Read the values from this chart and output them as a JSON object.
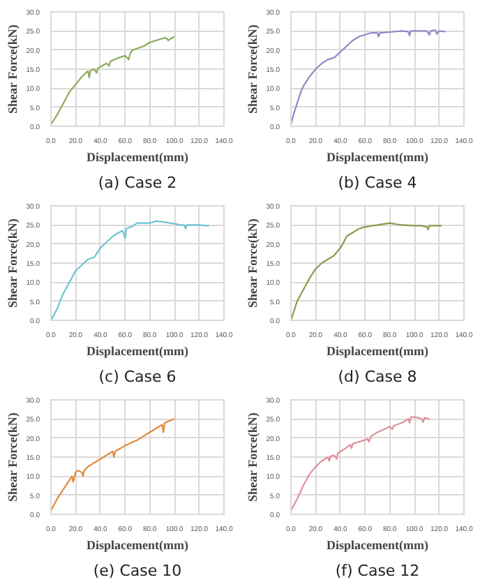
{
  "chart_data": [
    {
      "type": "line",
      "title": "(a) Case 2",
      "xlabel": "Displacement(mm)",
      "ylabel": "Shear Force(kN)",
      "xlim": [
        0,
        140
      ],
      "ylim": [
        0,
        30
      ],
      "grid": true,
      "marker": "none",
      "line_style": "solid",
      "xticks": [
        {
          "value": 0,
          "label": "0.0"
        },
        {
          "value": 20,
          "label": "20.0"
        },
        {
          "value": 40,
          "label": "40.0"
        },
        {
          "value": 60,
          "label": "60.0"
        },
        {
          "value": 80,
          "label": "80.0"
        },
        {
          "value": 100,
          "label": "100.0"
        },
        {
          "value": 120,
          "label": "120.0"
        },
        {
          "value": 140,
          "label": "140.0"
        }
      ],
      "yticks": [
        {
          "value": 0,
          "label": "0.0"
        },
        {
          "value": 5,
          "label": "5.0"
        },
        {
          "value": 10,
          "label": "10.0"
        },
        {
          "value": 15,
          "label": "15.0"
        },
        {
          "value": 20,
          "label": "20.0"
        },
        {
          "value": 25,
          "label": "25.0"
        },
        {
          "value": 30,
          "label": "30.0"
        }
      ],
      "x": [
        0,
        5,
        10,
        15,
        20,
        25,
        30,
        31,
        32,
        35,
        37,
        38,
        45,
        47,
        48,
        55,
        60,
        63,
        64,
        66,
        75,
        80,
        90,
        93,
        95,
        97,
        100
      ],
      "series": [
        {
          "color": "#8aab5a",
          "values": [
            0.5,
            3,
            6,
            9,
            11,
            13,
            14.5,
            12.8,
            14.6,
            15,
            14,
            15.2,
            16.5,
            15.8,
            17,
            18,
            18.5,
            17.5,
            19,
            20,
            21,
            22,
            23,
            23.2,
            22.5,
            23,
            23.5
          ]
        }
      ]
    },
    {
      "type": "line",
      "title": "(b) Case 4",
      "xlabel": "Displacement(mm)",
      "ylabel": "Shear Force(kN)",
      "xlim": [
        0,
        140
      ],
      "ylim": [
        0,
        30
      ],
      "grid": true,
      "marker": "none",
      "line_style": "solid",
      "xticks": [
        {
          "value": 0,
          "label": "0.0"
        },
        {
          "value": 20,
          "label": "20.0"
        },
        {
          "value": 40,
          "label": "40.0"
        },
        {
          "value": 60,
          "label": "60.0"
        },
        {
          "value": 80,
          "label": "80.0"
        },
        {
          "value": 100,
          "label": "100.0"
        },
        {
          "value": 120,
          "label": "120.0"
        },
        {
          "value": 140,
          "label": "140.0"
        }
      ],
      "yticks": [
        {
          "value": 0,
          "label": "0.0"
        },
        {
          "value": 5,
          "label": "5.0"
        },
        {
          "value": 10,
          "label": "10.0"
        },
        {
          "value": 15,
          "label": "15.0"
        },
        {
          "value": 20,
          "label": "20.0"
        },
        {
          "value": 25,
          "label": "25.0"
        },
        {
          "value": 30,
          "label": "30.0"
        }
      ],
      "x": [
        0,
        2,
        5,
        8,
        10,
        15,
        20,
        25,
        30,
        35,
        40,
        45,
        50,
        55,
        60,
        65,
        70,
        71,
        72,
        80,
        90,
        95,
        96,
        97,
        110,
        112,
        113,
        117,
        118,
        120,
        125
      ],
      "series": [
        {
          "color": "#8a8ac8",
          "values": [
            0.5,
            3,
            6,
            9,
            10.5,
            13,
            15,
            16.5,
            17.5,
            18,
            19.5,
            21,
            22.5,
            23.5,
            24,
            24.5,
            24.5,
            23.5,
            24.5,
            24.7,
            25,
            24.8,
            23.8,
            25,
            25,
            24,
            25,
            25.2,
            24.2,
            25,
            24.8
          ]
        }
      ]
    },
    {
      "type": "line",
      "title": "(c) Case 6",
      "xlabel": "Displacement(mm)",
      "ylabel": "Shear Force(kN)",
      "xlim": [
        0,
        140
      ],
      "ylim": [
        0,
        30
      ],
      "grid": true,
      "marker": "none",
      "line_style": "solid",
      "xticks": [
        {
          "value": 0,
          "label": "0.0"
        },
        {
          "value": 20,
          "label": "20.0"
        },
        {
          "value": 40,
          "label": "40.0"
        },
        {
          "value": 60,
          "label": "60.0"
        },
        {
          "value": 80,
          "label": "80.0"
        },
        {
          "value": 100,
          "label": "100.0"
        },
        {
          "value": 120,
          "label": "120.0"
        },
        {
          "value": 140,
          "label": "140.0"
        }
      ],
      "yticks": [
        {
          "value": 0,
          "label": "0.0"
        },
        {
          "value": 5,
          "label": "5.0"
        },
        {
          "value": 10,
          "label": "10.0"
        },
        {
          "value": 15,
          "label": "15.0"
        },
        {
          "value": 20,
          "label": "20.0"
        },
        {
          "value": 25,
          "label": "25.0"
        },
        {
          "value": 30,
          "label": "30.0"
        }
      ],
      "x": [
        0,
        5,
        8,
        10,
        15,
        20,
        25,
        30,
        35,
        40,
        45,
        50,
        55,
        58,
        60,
        61,
        65,
        70,
        80,
        85,
        90,
        100,
        105,
        108,
        109,
        110,
        120,
        125,
        128
      ],
      "series": [
        {
          "color": "#6cc5d0",
          "values": [
            0,
            3,
            5.5,
            7,
            10,
            13,
            14.5,
            16,
            16.5,
            19,
            20.5,
            22,
            23,
            23.5,
            21.5,
            24,
            24.5,
            25.5,
            25.5,
            26,
            25.8,
            25.3,
            25,
            25,
            24,
            25,
            25,
            24.8,
            24.8
          ]
        }
      ]
    },
    {
      "type": "line",
      "title": "(d) Case 8",
      "xlabel": "Displacement(mm)",
      "ylabel": "Shear Force(kN)",
      "xlim": [
        0,
        140
      ],
      "ylim": [
        0,
        30
      ],
      "grid": true,
      "marker": "none",
      "line_style": "solid",
      "xticks": [
        {
          "value": 0,
          "label": "0.0"
        },
        {
          "value": 20,
          "label": "20.0"
        },
        {
          "value": 40,
          "label": "40.0"
        },
        {
          "value": 60,
          "label": "60.0"
        },
        {
          "value": 80,
          "label": "80.0"
        },
        {
          "value": 100,
          "label": "100.0"
        },
        {
          "value": 120,
          "label": "120.0"
        },
        {
          "value": 140,
          "label": "140.0"
        }
      ],
      "yticks": [
        {
          "value": 0,
          "label": "0.0"
        },
        {
          "value": 5,
          "label": "5.0"
        },
        {
          "value": 10,
          "label": "10.0"
        },
        {
          "value": 15,
          "label": "15.0"
        },
        {
          "value": 20,
          "label": "20.0"
        },
        {
          "value": 25,
          "label": "25.0"
        },
        {
          "value": 30,
          "label": "30.0"
        }
      ],
      "x": [
        0,
        3,
        5,
        10,
        15,
        20,
        25,
        30,
        35,
        40,
        42,
        45,
        50,
        55,
        60,
        70,
        80,
        85,
        90,
        100,
        105,
        110,
        111,
        112,
        120,
        122
      ],
      "series": [
        {
          "color": "#8c9a4e",
          "values": [
            0,
            3,
            5,
            8,
            11,
            13.5,
            15,
            16,
            17,
            19,
            20,
            22,
            23,
            24,
            24.5,
            25,
            25.5,
            25.2,
            25,
            24.8,
            24.8,
            24.5,
            23.8,
            24.8,
            24.8,
            24.8
          ]
        }
      ]
    },
    {
      "type": "line",
      "title": "(e) Case 10",
      "xlabel": "Displacement(mm)",
      "ylabel": "Shear Force(kN)",
      "xlim": [
        0,
        140
      ],
      "ylim": [
        0,
        30
      ],
      "grid": true,
      "marker": "none",
      "line_style": "solid",
      "xticks": [
        {
          "value": 0,
          "label": "0.0"
        },
        {
          "value": 20,
          "label": "20.0"
        },
        {
          "value": 40,
          "label": "40.0"
        },
        {
          "value": 60,
          "label": "60.0"
        },
        {
          "value": 80,
          "label": "80.0"
        },
        {
          "value": 100,
          "label": "100.0"
        },
        {
          "value": 120,
          "label": "120.0"
        },
        {
          "value": 140,
          "label": "140.0"
        }
      ],
      "yticks": [
        {
          "value": 0,
          "label": "0.0"
        },
        {
          "value": 5,
          "label": "5.0"
        },
        {
          "value": 10,
          "label": "10.0"
        },
        {
          "value": 15,
          "label": "15.0"
        },
        {
          "value": 20,
          "label": "20.0"
        },
        {
          "value": 25,
          "label": "25.0"
        },
        {
          "value": 30,
          "label": "30.0"
        }
      ],
      "x": [
        0,
        5,
        10,
        15,
        17,
        18,
        20,
        22,
        25,
        26,
        27,
        30,
        35,
        40,
        45,
        50,
        51,
        52,
        60,
        70,
        80,
        90,
        91,
        92,
        100
      ],
      "series": [
        {
          "color": "#e08a3c",
          "values": [
            1,
            4,
            6.5,
            9,
            10,
            8.5,
            11,
            11.5,
            11,
            10,
            11.5,
            12.5,
            13.5,
            14.5,
            15.5,
            16.5,
            15,
            16.5,
            18,
            19.5,
            21.5,
            23.5,
            21.5,
            24,
            25
          ]
        }
      ]
    },
    {
      "type": "line",
      "title": "(f) Case 12",
      "xlabel": "Displacement(mm)",
      "ylabel": "Shear Force(kN)",
      "xlim": [
        0,
        140
      ],
      "ylim": [
        0,
        30
      ],
      "grid": true,
      "marker": "none",
      "line_style": "solid",
      "xticks": [
        {
          "value": 0,
          "label": "0.0"
        },
        {
          "value": 20,
          "label": "20.0"
        },
        {
          "value": 40,
          "label": "40.0"
        },
        {
          "value": 60,
          "label": "60.0"
        },
        {
          "value": 80,
          "label": "80.0"
        },
        {
          "value": 100,
          "label": "100.0"
        },
        {
          "value": 120,
          "label": "120.0"
        },
        {
          "value": 140,
          "label": "140.0"
        }
      ],
      "yticks": [
        {
          "value": 0,
          "label": "0.0"
        },
        {
          "value": 5,
          "label": "5.0"
        },
        {
          "value": 10,
          "label": "10.0"
        },
        {
          "value": 15,
          "label": "15.0"
        },
        {
          "value": 20,
          "label": "20.0"
        },
        {
          "value": 25,
          "label": "25.0"
        },
        {
          "value": 30,
          "label": "30.0"
        }
      ],
      "x": [
        0,
        5,
        10,
        15,
        20,
        25,
        30,
        31,
        32,
        35,
        37,
        38,
        45,
        48,
        49,
        50,
        60,
        62,
        63,
        65,
        70,
        80,
        82,
        83,
        90,
        95,
        96,
        97,
        100,
        105,
        107,
        108,
        112
      ],
      "series": [
        {
          "color": "#e0909a",
          "values": [
            1,
            4,
            7.5,
            10.5,
            12.5,
            14,
            15,
            14,
            15.2,
            15.5,
            14.5,
            16,
            17.5,
            18.2,
            17.3,
            18.5,
            19.5,
            19.8,
            19,
            20.5,
            21.5,
            23,
            22.3,
            23.2,
            24,
            25,
            24,
            25.5,
            25.5,
            25.2,
            24.2,
            25.3,
            25
          ]
        }
      ]
    }
  ]
}
